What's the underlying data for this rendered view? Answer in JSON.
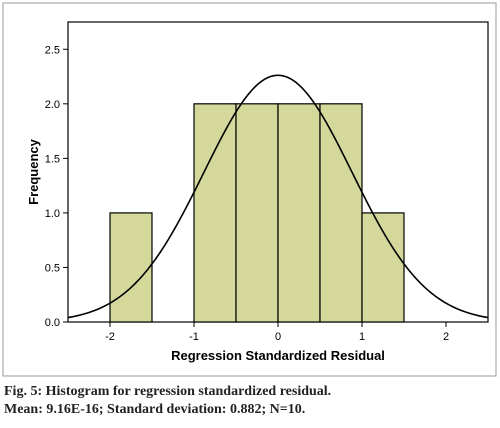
{
  "chart_data": {
    "type": "bar",
    "subtype": "histogram",
    "bins": [
      {
        "from": -2.0,
        "to": -1.5,
        "frequency": 1
      },
      {
        "from": -1.5,
        "to": -1.0,
        "frequency": 0
      },
      {
        "from": -1.0,
        "to": -0.5,
        "frequency": 2
      },
      {
        "from": -0.5,
        "to": 0.0,
        "frequency": 2
      },
      {
        "from": 0.0,
        "to": 0.5,
        "frequency": 2
      },
      {
        "from": 0.5,
        "to": 1.0,
        "frequency": 2
      },
      {
        "from": 1.0,
        "to": 1.5,
        "frequency": 1
      }
    ],
    "normal_curve": {
      "mean": 0.0,
      "sd": 0.882,
      "n": 10,
      "bin_width": 0.5
    },
    "xlabel": "Regression Standardized Residual",
    "ylabel": "Frequency",
    "xlim": [
      -2.5,
      2.5
    ],
    "ylim": [
      0,
      2.75
    ],
    "x_ticks": [
      "-2",
      "-1",
      "0",
      "1",
      "2"
    ],
    "y_ticks": [
      "0.0",
      "0.5",
      "1.0",
      "1.5",
      "2.0",
      "2.5"
    ],
    "grid": false,
    "bar_color": "#d4d89a",
    "curve_color": "#000000"
  },
  "caption": {
    "line1": "Fig. 5: Histogram for regression standardized residual.",
    "line2": "Mean: 9.16E-16; Standard deviation: 0.882; N=10."
  }
}
